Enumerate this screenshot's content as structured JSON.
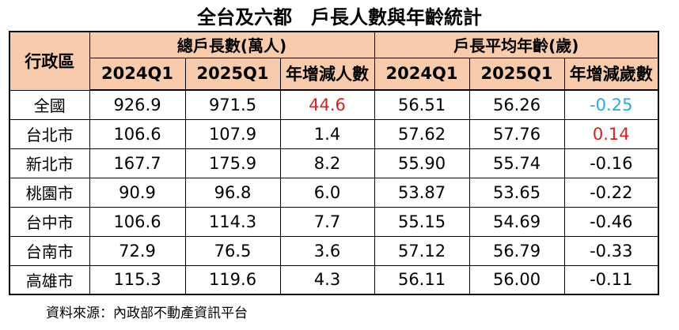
{
  "title": "全台及六都　戶長人數與年齡統計",
  "source_note": "資料來源：內政部不動產資訊平台",
  "colors": {
    "header_bg": "#F8CBAD",
    "positive_red": "#D0241E",
    "negative_blue": "#29ABE2",
    "border": "#000000",
    "text": "#000000"
  },
  "chart_data": {
    "type": "table",
    "title": "全台及六都　戶長人數與年齡統計",
    "corner_header": "行政區",
    "column_groups": [
      {
        "label": "總戶長數(萬人)",
        "columns": [
          "2024Q1",
          "2025Q1",
          "年增減人數"
        ]
      },
      {
        "label": "戶長平均年齡(歲)",
        "columns": [
          "2024Q1",
          "2025Q1",
          "年增減歲數"
        ]
      }
    ],
    "rows": [
      {
        "region": "全國",
        "values": [
          "926.9",
          "971.5",
          "44.6",
          "56.51",
          "56.26",
          "-0.25"
        ],
        "value_colors": [
          null,
          null,
          "red",
          null,
          null,
          "blue"
        ]
      },
      {
        "region": "台北市",
        "values": [
          "106.6",
          "107.9",
          "1.4",
          "57.62",
          "57.76",
          "0.14"
        ],
        "value_colors": [
          null,
          null,
          null,
          null,
          null,
          "red"
        ]
      },
      {
        "region": "新北市",
        "values": [
          "167.7",
          "175.9",
          "8.2",
          "55.90",
          "55.74",
          "-0.16"
        ],
        "value_colors": [
          null,
          null,
          null,
          null,
          null,
          null
        ]
      },
      {
        "region": "桃園市",
        "values": [
          "90.9",
          "96.8",
          "6.0",
          "53.87",
          "53.65",
          "-0.22"
        ],
        "value_colors": [
          null,
          null,
          null,
          null,
          null,
          null
        ]
      },
      {
        "region": "台中市",
        "values": [
          "106.6",
          "114.3",
          "7.7",
          "55.15",
          "54.69",
          "-0.46"
        ],
        "value_colors": [
          null,
          null,
          null,
          null,
          null,
          null
        ]
      },
      {
        "region": "台南市",
        "values": [
          "72.9",
          "76.5",
          "3.6",
          "57.12",
          "56.79",
          "-0.33"
        ],
        "value_colors": [
          null,
          null,
          null,
          null,
          null,
          null
        ]
      },
      {
        "region": "高雄市",
        "values": [
          "115.3",
          "119.6",
          "4.3",
          "56.11",
          "56.00",
          "-0.11"
        ],
        "value_colors": [
          null,
          null,
          null,
          null,
          null,
          null
        ]
      }
    ]
  }
}
